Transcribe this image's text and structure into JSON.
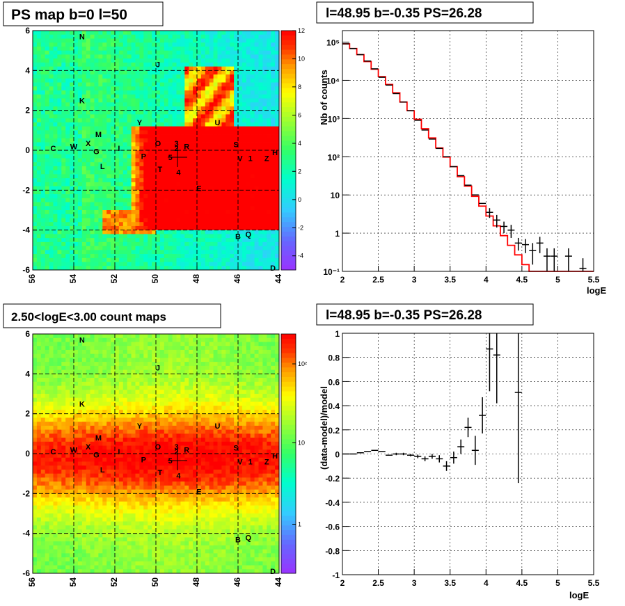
{
  "colors": {
    "model_line": "#ff0000",
    "data_points": "#000000"
  },
  "panels": {
    "ps_map": {
      "title": "PS map b=0 l=50",
      "x_ticks": [
        "56",
        "54",
        "52",
        "50",
        "48",
        "46",
        "44"
      ],
      "y_ticks": [
        "6",
        "4",
        "2",
        "0",
        "-2",
        "-4",
        "-6"
      ],
      "colorbar_ticks": [
        "12",
        "10",
        "8",
        "6",
        "4",
        "2",
        "0",
        "-2",
        "-4"
      ]
    },
    "spectrum": {
      "title": "l=48.95 b=-0.35 PS=26.28",
      "ylabel": "Nb of counts",
      "xlabel": "logE",
      "x_ticks": [
        "2",
        "2.5",
        "3",
        "3.5",
        "4",
        "4.5",
        "5",
        "5.5"
      ],
      "y_ticks": [
        "10⁵",
        "10⁴",
        "10³",
        "10²",
        "10",
        "1",
        "10⁻¹"
      ]
    },
    "count_map": {
      "title": "2.50<logE<3.00 count maps",
      "x_ticks": [
        "56",
        "54",
        "52",
        "50",
        "48",
        "46",
        "44"
      ],
      "y_ticks": [
        "6",
        "4",
        "2",
        "0",
        "-2",
        "-4",
        "-6"
      ],
      "colorbar_ticks": [
        "10²",
        "10",
        "1"
      ]
    },
    "residual": {
      "title": "l=48.95 b=-0.35 PS=26.28",
      "ylabel": "(data-model)/model",
      "xlabel": "logE",
      "x_ticks": [
        "2",
        "2.5",
        "3",
        "3.5",
        "4",
        "4.5",
        "5",
        "5.5"
      ],
      "y_ticks": [
        "1",
        "0.8",
        "0.6",
        "0.4",
        "0.2",
        "0",
        "-0.2",
        "-0.4",
        "-0.6",
        "-0.8",
        "-1"
      ]
    }
  },
  "sources": [
    {
      "label": "N",
      "l": 53.6,
      "b": 5.7
    },
    {
      "label": "J",
      "l": 49.9,
      "b": 4.3
    },
    {
      "label": "K",
      "l": 53.6,
      "b": 2.5
    },
    {
      "label": "M",
      "l": 52.8,
      "b": 0.8
    },
    {
      "label": "Y",
      "l": 50.8,
      "b": 1.4
    },
    {
      "label": "U",
      "l": 47.0,
      "b": 1.4
    },
    {
      "label": "C",
      "l": 55.0,
      "b": 0.1
    },
    {
      "label": "W",
      "l": 54.0,
      "b": 0.2
    },
    {
      "label": "X",
      "l": 53.3,
      "b": 0.35
    },
    {
      "label": "G",
      "l": 52.9,
      "b": -0.05
    },
    {
      "label": "I",
      "l": 51.8,
      "b": 0.1
    },
    {
      "label": "L",
      "l": 52.6,
      "b": -0.8
    },
    {
      "label": "O",
      "l": 49.9,
      "b": 0.35
    },
    {
      "label": "3",
      "l": 49.0,
      "b": 0.35
    },
    {
      "label": "2",
      "l": 49.0,
      "b": 0.1
    },
    {
      "label": "R",
      "l": 48.5,
      "b": 0.2
    },
    {
      "label": "P",
      "l": 50.6,
      "b": -0.3
    },
    {
      "label": "5",
      "l": 49.3,
      "b": -0.35
    },
    {
      "label": "T",
      "l": 49.8,
      "b": -0.95
    },
    {
      "label": "4",
      "l": 48.9,
      "b": -1.1
    },
    {
      "label": "E",
      "l": 47.9,
      "b": -1.9
    },
    {
      "label": "S",
      "l": 46.1,
      "b": 0.3
    },
    {
      "label": "V",
      "l": 45.9,
      "b": -0.4
    },
    {
      "label": "1",
      "l": 45.4,
      "b": -0.4
    },
    {
      "label": "Z",
      "l": 44.6,
      "b": -0.4
    },
    {
      "label": "H",
      "l": 44.2,
      "b": -0.1
    },
    {
      "label": "B",
      "l": 46.0,
      "b": -4.3
    },
    {
      "label": "Q",
      "l": 45.5,
      "b": -4.2
    },
    {
      "label": "D",
      "l": 44.3,
      "b": -5.9
    }
  ],
  "chart_data": [
    {
      "type": "heatmap",
      "title": "PS map b=0 l=50",
      "xlabel": "",
      "ylabel": "",
      "xlim": [
        56,
        44
      ],
      "ylim": [
        -6,
        6
      ],
      "zlim": [
        -5,
        12
      ],
      "colorbar": "rainbow",
      "marker": {
        "l": 48.95,
        "b": -0.35
      }
    },
    {
      "type": "line",
      "title": "l=48.95 b=-0.35 PS=26.28",
      "xlabel": "logE",
      "ylabel": "Nb of counts",
      "xlim": [
        2,
        5.5
      ],
      "ylim": [
        0.1,
        200000
      ],
      "ylog": true,
      "series": [
        {
          "name": "",
          "style": "step",
          "x": [
            2.0,
            2.1,
            2.2,
            2.3,
            2.4,
            2.5,
            2.6,
            2.7,
            2.8,
            2.9,
            3.0,
            3.1,
            3.2,
            3.3,
            3.4,
            3.5,
            3.6,
            3.7,
            3.8,
            3.9,
            4.0,
            4.1,
            4.2,
            4.3,
            4.4,
            4.5,
            4.6,
            4.7,
            4.8,
            4.9,
            5.0,
            5.1,
            5.2,
            5.3,
            5.4,
            5.5
          ],
          "values": [
            90000,
            68000,
            47000,
            31000,
            19500,
            12500,
            7800,
            4700,
            2700,
            1600,
            950,
            540,
            310,
            170,
            98,
            55,
            30,
            17,
            9.2,
            5.1,
            2.8,
            1.55,
            0.86,
            0.48,
            0.27,
            0.15,
            0.1,
            0.1,
            0.1,
            0.1,
            0.1,
            0.1,
            0.1,
            0.1,
            0.1,
            0.1
          ]
        },
        {
          "name": "",
          "style": "points",
          "x": [
            2.05,
            2.15,
            2.25,
            2.35,
            2.45,
            2.55,
            2.65,
            2.75,
            2.85,
            2.95,
            3.05,
            3.15,
            3.25,
            3.35,
            3.45,
            3.55,
            3.65,
            3.75,
            3.85,
            3.95,
            4.05,
            4.15,
            4.25,
            4.35,
            4.45,
            4.55,
            4.65,
            4.75,
            4.85,
            4.95,
            5.15,
            5.35
          ],
          "values": [
            90000,
            68000,
            47000,
            32000,
            20000,
            12000,
            7500,
            4500,
            2700,
            1600,
            900,
            500,
            290,
            165,
            100,
            55,
            32,
            18,
            10,
            6,
            3.5,
            2.2,
            1.5,
            1.2,
            0.55,
            0.5,
            0.35,
            0.55,
            0.25,
            0.25,
            0.25,
            0.12
          ],
          "yerr": [
            0,
            0,
            0,
            0,
            0,
            0,
            0,
            0,
            0,
            0,
            0,
            0,
            0,
            0,
            0,
            0,
            0,
            0,
            0,
            0,
            1.0,
            0.8,
            0.5,
            0.45,
            0.2,
            0.2,
            0.2,
            0.25,
            0.15,
            0.15,
            0.15,
            0.1
          ]
        }
      ]
    },
    {
      "type": "heatmap",
      "title": "2.50<logE<3.00 count maps",
      "xlabel": "",
      "ylabel": "",
      "xlim": [
        56,
        44
      ],
      "ylim": [
        -6,
        6
      ],
      "zscale": "log",
      "zlim": [
        0.3,
        300
      ],
      "colorbar": "rainbow",
      "marker": {
        "l": 48.95,
        "b": -0.35
      }
    },
    {
      "type": "scatter",
      "title": "l=48.95 b=-0.35 PS=26.28",
      "xlabel": "logE",
      "ylabel": "(data-model)/model",
      "xlim": [
        2,
        5.5
      ],
      "ylim": [
        -1,
        1
      ],
      "series": [
        {
          "name": "",
          "x": [
            2.05,
            2.15,
            2.25,
            2.35,
            2.45,
            2.55,
            2.65,
            2.75,
            2.85,
            2.95,
            3.05,
            3.15,
            3.25,
            3.35,
            3.45,
            3.55,
            3.65,
            3.75,
            3.85,
            3.95,
            4.05,
            4.15,
            4.45
          ],
          "values": [
            0.0,
            0.0,
            0.01,
            0.02,
            0.03,
            0.02,
            -0.01,
            0.0,
            0.0,
            -0.01,
            -0.02,
            -0.04,
            -0.02,
            -0.04,
            -0.1,
            -0.03,
            0.06,
            0.22,
            0.03,
            0.32,
            0.87,
            0.82,
            0.51
          ],
          "yerr": [
            0.0,
            0.0,
            0.0,
            0.0,
            0.0,
            0.0,
            0.0,
            0.01,
            0.01,
            0.01,
            0.015,
            0.02,
            0.02,
            0.03,
            0.04,
            0.05,
            0.06,
            0.08,
            0.12,
            0.15,
            0.35,
            0.4,
            0.75
          ]
        }
      ]
    }
  ]
}
